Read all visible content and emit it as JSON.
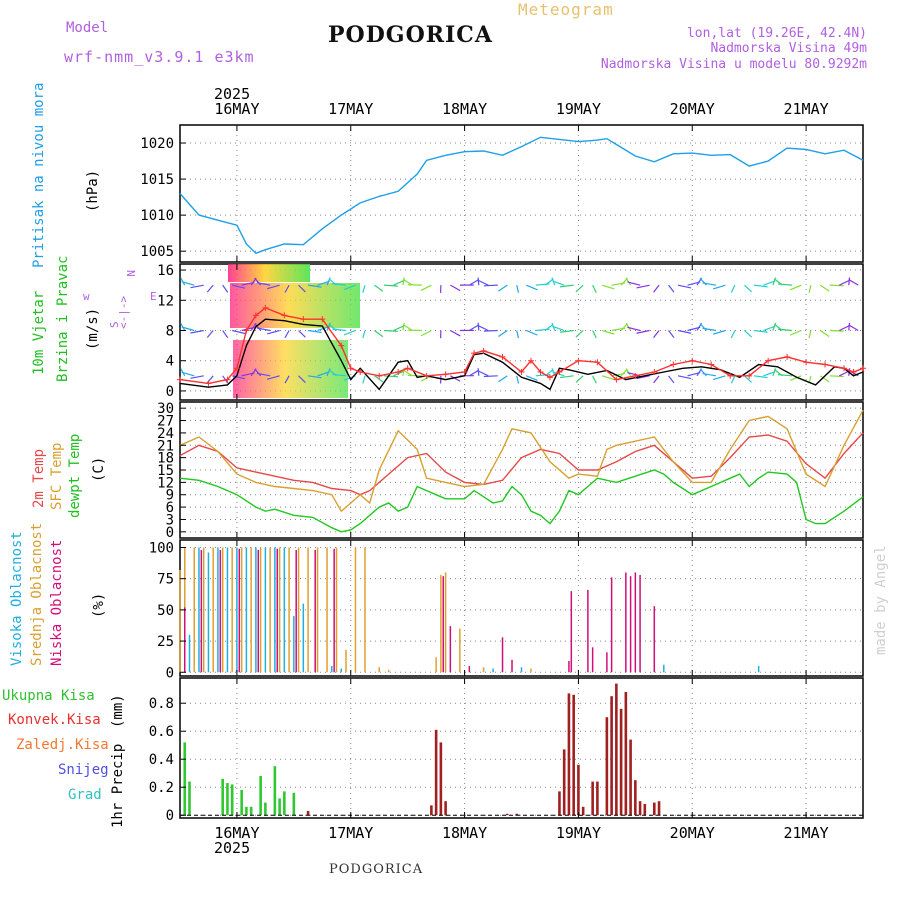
{
  "header": {
    "model_label": "Model",
    "model_name": "wrf-nmm_v3.9.1 e3km",
    "title": "PODGORICA",
    "subtitle": "Meteogram",
    "coords": "lon,lat (19.26E, 42.4N)",
    "elevation": "Nadmorska Visina 49m",
    "model_elevation": "Nadmorska Visina u modelu 80.9292m",
    "footer_station": "PODGORICA",
    "credit": "made by Angel"
  },
  "colors": {
    "pressure": "#1E9FE8",
    "speed_line": "#000000",
    "gust": "#FF3030",
    "t2m": "#E84848",
    "sfc": "#D8A030",
    "dew": "#20C820",
    "high_cloud": "#20B0E0",
    "mid_cloud": "#E0A030",
    "low_cloud": "#D0107A",
    "total_precip": "#30C830",
    "conv_precip": "#A02020",
    "frozen": "#F07830",
    "snow": "#5050E0",
    "graupel": "#30C0C0"
  },
  "chart_data": {
    "type": "meteogram",
    "year": "2025",
    "x_ticks": [
      "16MAY",
      "17MAY",
      "18MAY",
      "19MAY",
      "20MAY",
      "21MAY"
    ],
    "x_range_hours": [
      -12,
      132
    ],
    "panels": [
      {
        "id": "pressure",
        "type": "line",
        "ylabel": "Pritisak na nivou mora",
        "units": "(hPa)",
        "yticks": [
          1005,
          1010,
          1015,
          1020
        ],
        "ylim": [
          1003.5,
          1022.5
        ],
        "series": [
          {
            "name": "MSLP",
            "color_key": "pressure",
            "x": [
              -12,
              -8,
              -4,
              0,
              2,
              4,
              6,
              10,
              14,
              18,
              22,
              26,
              30,
              34,
              38,
              40,
              44,
              48,
              52,
              56,
              60,
              64,
              68,
              72,
              74,
              76,
              78,
              80,
              84,
              88,
              92,
              96,
              100,
              104,
              108,
              112,
              116,
              120,
              124,
              128,
              132
            ],
            "y": [
              1013,
              1010,
              1009.3,
              1008.6,
              1006,
              1004.7,
              1005.2,
              1006,
              1005.9,
              1008.1,
              1010,
              1011.7,
              1012.6,
              1013.3,
              1015.7,
              1017.6,
              1018.3,
              1018.8,
              1018.9,
              1018.3,
              1019.5,
              1020.8,
              1020.5,
              1020.2,
              1020.3,
              1020.4,
              1020.6,
              1019.8,
              1018.2,
              1017.4,
              1018.5,
              1018.6,
              1018.3,
              1018.4,
              1016.8,
              1017.5,
              1019.3,
              1019.1,
              1018.5,
              1019,
              1017.6
            ]
          }
        ]
      },
      {
        "id": "wind",
        "type": "line+barbs",
        "ylabel": "10m Vjetar Brzina i Pravac",
        "units": "(m/s)",
        "legend": [
          "w",
          "<-|->",
          "E",
          "N",
          "S"
        ],
        "yticks": [
          0,
          4,
          8,
          12,
          16
        ],
        "ylim": [
          -1.2,
          16.8
        ],
        "series": [
          {
            "name": "speed",
            "color_key": "speed_line",
            "x": [
              -12,
              -6,
              -2,
              0,
              2,
              4,
              6,
              10,
              14,
              18,
              22,
              24,
              26,
              30,
              34,
              36,
              38,
              40,
              44,
              48,
              50,
              52,
              56,
              60,
              64,
              66,
              68,
              70,
              74,
              78,
              82,
              86,
              90,
              94,
              98,
              102,
              106,
              110,
              114,
              118,
              122,
              126,
              128,
              130,
              132
            ],
            "y": [
              1,
              0.5,
              0.8,
              2,
              6,
              8.5,
              9.5,
              9.3,
              8.8,
              8.6,
              4,
              1.5,
              3,
              0.2,
              3.8,
              4,
              1.8,
              2,
              1.5,
              2,
              4.8,
              5,
              3.8,
              1.8,
              1,
              0.2,
              3,
              2.8,
              2.2,
              2.7,
              1.5,
              2,
              2.5,
              3,
              3.2,
              2.8,
              1.8,
              3.5,
              3.2,
              1.8,
              0.8,
              3.2,
              3,
              2,
              2.5
            ]
          },
          {
            "name": "gust",
            "color_key": "gust",
            "x": [
              -12,
              -6,
              -2,
              0,
              2,
              4,
              6,
              10,
              14,
              18,
              22,
              24,
              26,
              30,
              34,
              36,
              40,
              44,
              48,
              50,
              52,
              56,
              60,
              62,
              64,
              66,
              68,
              72,
              76,
              80,
              84,
              88,
              92,
              96,
              100,
              104,
              108,
              112,
              116,
              120,
              124,
              128,
              130,
              132
            ],
            "y": [
              1.5,
              1,
              1.5,
              3,
              8,
              10,
              11,
              10,
              9.5,
              9.5,
              6,
              3,
              2.5,
              2,
              2.5,
              3,
              2,
              2.2,
              2.5,
              5,
              5.3,
              4.5,
              2.5,
              4,
              2.5,
              1.8,
              2.5,
              4,
              3.8,
              1.5,
              2,
              2.5,
              3.5,
              4,
              3.5,
              2,
              2,
              4,
              4.5,
              3.8,
              3.5,
              3,
              2.5,
              3
            ]
          }
        ],
        "barb_rows": [
          2,
          8,
          14
        ]
      },
      {
        "id": "temperature",
        "type": "line",
        "ylabel": "2m Temp SFC Temp dewpt Temp",
        "units": "(C)",
        "yticks": [
          0,
          3,
          6,
          9,
          12,
          15,
          18,
          21,
          24,
          27,
          30
        ],
        "ylim": [
          -1.5,
          31.5
        ],
        "series": [
          {
            "name": "2m Temp",
            "color_key": "t2m",
            "x": [
              -12,
              -8,
              -4,
              0,
              4,
              8,
              12,
              16,
              20,
              24,
              26,
              28,
              30,
              32,
              36,
              40,
              44,
              48,
              52,
              56,
              60,
              64,
              68,
              72,
              76,
              80,
              84,
              88,
              92,
              96,
              100,
              104,
              108,
              112,
              116,
              120,
              124,
              128,
              132
            ],
            "y": [
              18.5,
              21,
              19.5,
              15.5,
              14.5,
              13.5,
              12.5,
              12,
              10.5,
              10,
              9,
              10,
              12,
              14,
              18,
              19,
              14.5,
              12,
              11.5,
              12.5,
              18,
              20,
              19,
              15,
              15,
              17,
              19.5,
              21,
              17,
              13,
              13.5,
              18,
              23,
              23.5,
              22,
              16.5,
              13,
              19,
              24
            ]
          },
          {
            "name": "SFC Temp",
            "color_key": "sfc",
            "x": [
              -12,
              -8,
              -4,
              0,
              4,
              8,
              12,
              16,
              20,
              22,
              24,
              26,
              28,
              30,
              34,
              38,
              40,
              44,
              48,
              52,
              56,
              58,
              62,
              66,
              70,
              72,
              76,
              78,
              80,
              84,
              88,
              92,
              96,
              100,
              104,
              108,
              112,
              116,
              120,
              124,
              128,
              132
            ],
            "y": [
              21,
              23,
              19.5,
              14,
              12,
              11,
              10.5,
              10,
              9,
              5,
              7,
              9,
              7,
              15,
              24.5,
              20,
              13,
              12,
              11,
              11.5,
              20,
              25,
              24,
              17,
              13,
              14,
              13.5,
              20,
              21,
              22,
              23,
              17,
              12,
              12,
              20,
              27,
              28,
              25,
              14,
              11,
              21,
              29.5
            ]
          },
          {
            "name": "dewpt Temp",
            "color_key": "dew",
            "x": [
              -12,
              -8,
              -4,
              0,
              4,
              6,
              8,
              12,
              16,
              20,
              22,
              24,
              26,
              28,
              30,
              32,
              34,
              36,
              38,
              40,
              42,
              44,
              48,
              50,
              52,
              54,
              56,
              58,
              60,
              62,
              64,
              66,
              68,
              70,
              72,
              76,
              80,
              84,
              88,
              90,
              92,
              96,
              100,
              104,
              106,
              108,
              110,
              112,
              116,
              118,
              120,
              122,
              124,
              128,
              132
            ],
            "y": [
              13,
              12.5,
              11,
              9,
              6,
              5,
              5.5,
              4,
              3.5,
              1,
              0,
              0.5,
              2,
              4,
              6,
              7,
              5,
              6,
              11,
              10,
              9,
              8,
              8,
              10,
              8.5,
              7,
              7.5,
              11,
              9,
              5,
              4,
              2,
              5,
              10,
              9,
              13,
              12,
              13.5,
              15,
              14,
              12,
              9,
              11,
              13,
              14,
              11,
              13,
              14.5,
              14,
              12,
              3,
              2,
              2,
              5,
              8.5
            ]
          }
        ]
      },
      {
        "id": "clouds",
        "type": "bar",
        "ylabel": "Visoka Oblacnost Srednja Oblacnost Niska Oblacnost",
        "units": "(%)",
        "yticks": [
          0,
          25,
          50,
          75,
          100
        ],
        "ylim": [
          -3,
          106
        ],
        "series": [
          {
            "name": "Visoka Oblacnost",
            "color_key": "high_cloud",
            "x": [
              -10,
              -8,
              -6,
              -4,
              -2,
              0,
              2,
              4,
              6,
              8,
              10,
              12,
              14,
              20,
              22,
              54,
              60,
              90,
              110
            ],
            "y": [
              30,
              100,
              96,
              100,
              100,
              100,
              100,
              100,
              100,
              100,
              100,
              45,
              55,
              5,
              3,
              3,
              4,
              6,
              5
            ]
          },
          {
            "name": "Srednja Oblacnost",
            "color_key": "mid_cloud",
            "x": [
              -12,
              -11,
              -9,
              -7,
              -5,
              -3,
              -1,
              1,
              3,
              5,
              7,
              9,
              11,
              13,
              15,
              17,
              19,
              21,
              23,
              25,
              27,
              30,
              32,
              42,
              43,
              44,
              47,
              52,
              62
            ],
            "y": [
              82,
              100,
              100,
              100,
              100,
              100,
              100,
              100,
              100,
              100,
              100,
              100,
              100,
              100,
              100,
              100,
              100,
              100,
              18,
              100,
              100,
              4,
              2,
              12,
              78,
              80,
              35,
              4,
              3
            ]
          },
          {
            "name": "Niska Oblacnost",
            "color_key": "low_cloud",
            "x": [
              -11,
              -7.5,
              -3.5,
              0.5,
              4.5,
              8.5,
              12.5,
              16.5,
              20.5,
              43.5,
              45,
              49,
              56,
              58,
              70,
              70.5,
              74,
              75,
              78,
              79,
              82,
              83,
              84,
              85,
              88
            ],
            "y": [
              52,
              98,
              98,
              99,
              98,
              99,
              98,
              98,
              99,
              77,
              37,
              5,
              28,
              10,
              9,
              65,
              66,
              20,
              16,
              76,
              80,
              77,
              80,
              78,
              53
            ]
          }
        ]
      },
      {
        "id": "precip",
        "type": "bar",
        "ylabel": "1hr Precip",
        "units": "(mm)",
        "legend_entries": [
          "Ukupna Kisa",
          "Konvek.Kisa",
          "Zaledj.Kisa",
          "Snijeg",
          "Grad"
        ],
        "yticks": [
          0,
          0.2,
          0.4,
          0.6,
          0.8
        ],
        "ylim": [
          -0.02,
          0.98
        ],
        "series": [
          {
            "name": "Ukupna Kisa",
            "color_key": "total_precip",
            "x": [
              -11,
              -10,
              -3,
              -2,
              -1,
              1,
              2,
              3,
              5,
              6,
              8,
              9,
              10,
              12
            ],
            "y": [
              0.52,
              0.24,
              0.26,
              0.23,
              0.22,
              0.18,
              0.06,
              0.06,
              0.28,
              0.09,
              0.35,
              0.12,
              0.17,
              0.16
            ]
          },
          {
            "name": "Konvek.Kisa",
            "color_key": "conv_precip",
            "x": [
              15,
              41,
              42,
              43,
              44,
              57,
              59,
              68,
              69,
              70,
              71,
              72,
              73,
              75,
              76,
              78,
              79,
              80,
              81,
              82,
              83,
              84,
              85,
              86,
              88,
              89
            ],
            "y": [
              0.03,
              0.07,
              0.61,
              0.52,
              0.1,
              0.01,
              0.01,
              0.17,
              0.47,
              0.87,
              0.86,
              0.36,
              0.06,
              0.24,
              0.24,
              0.7,
              0.85,
              0.94,
              0.76,
              0.88,
              0.54,
              0.25,
              0.1,
              0.08,
              0.09,
              0.1
            ]
          }
        ]
      }
    ]
  }
}
